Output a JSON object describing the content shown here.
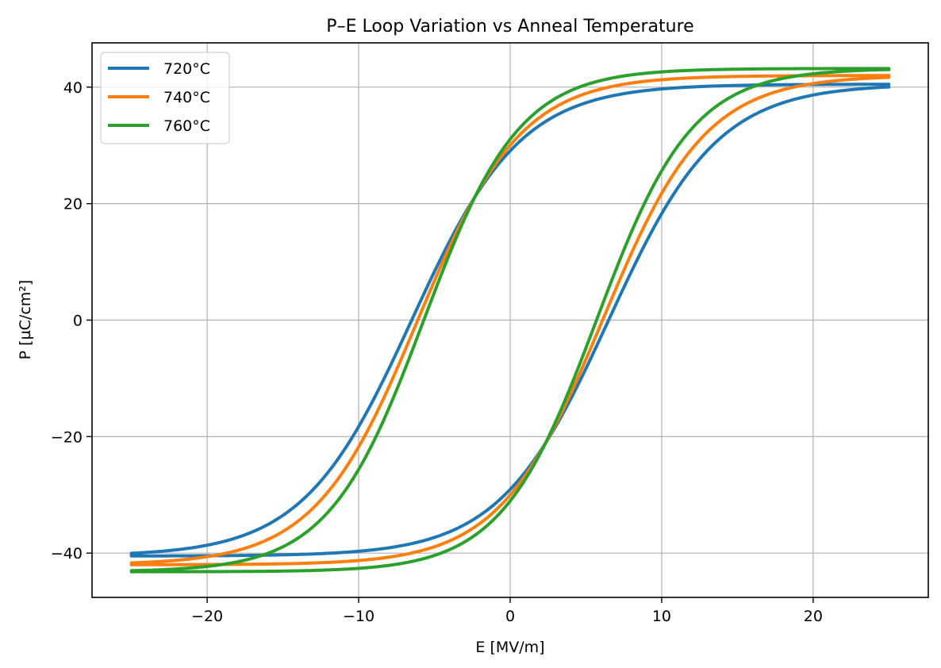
{
  "chart_data": {
    "type": "line",
    "title": "P–E Loop Variation vs Anneal Temperature",
    "xlabel": "E [MV/m]",
    "ylabel": "P [µC/cm²]",
    "xlim": [
      -27.6,
      27.6
    ],
    "ylim": [
      -47.6,
      47.6
    ],
    "xticks": [
      -20,
      -10,
      0,
      10,
      20
    ],
    "xtick_labels": [
      "−20",
      "−10",
      "0",
      "10",
      "20"
    ],
    "yticks": [
      -40,
      -20,
      0,
      20,
      40
    ],
    "ytick_labels": [
      "−40",
      "−20",
      "0",
      "20",
      "40"
    ],
    "grid": true,
    "legend_position": "top-left",
    "series": [
      {
        "name": "720°C",
        "color": "#1f77b4",
        "model": "hysteresis tanh loop",
        "saturation_polarization": 40.5,
        "coercive_field": 6.5,
        "transition_width": 7.2,
        "E_range": [
          -25,
          25
        ],
        "remanent_polarization": 29.0
      },
      {
        "name": "740°C",
        "color": "#ff7f0e",
        "model": "hysteresis tanh loop",
        "saturation_polarization": 42.0,
        "coercive_field": 6.1,
        "transition_width": 6.8,
        "E_range": [
          -25,
          25
        ],
        "remanent_polarization": 30.0
      },
      {
        "name": "760°C",
        "color": "#2ca02c",
        "model": "hysteresis tanh loop",
        "saturation_polarization": 43.2,
        "coercive_field": 5.7,
        "transition_width": 6.3,
        "E_range": [
          -25,
          25
        ],
        "remanent_polarization": 31.0
      }
    ]
  }
}
